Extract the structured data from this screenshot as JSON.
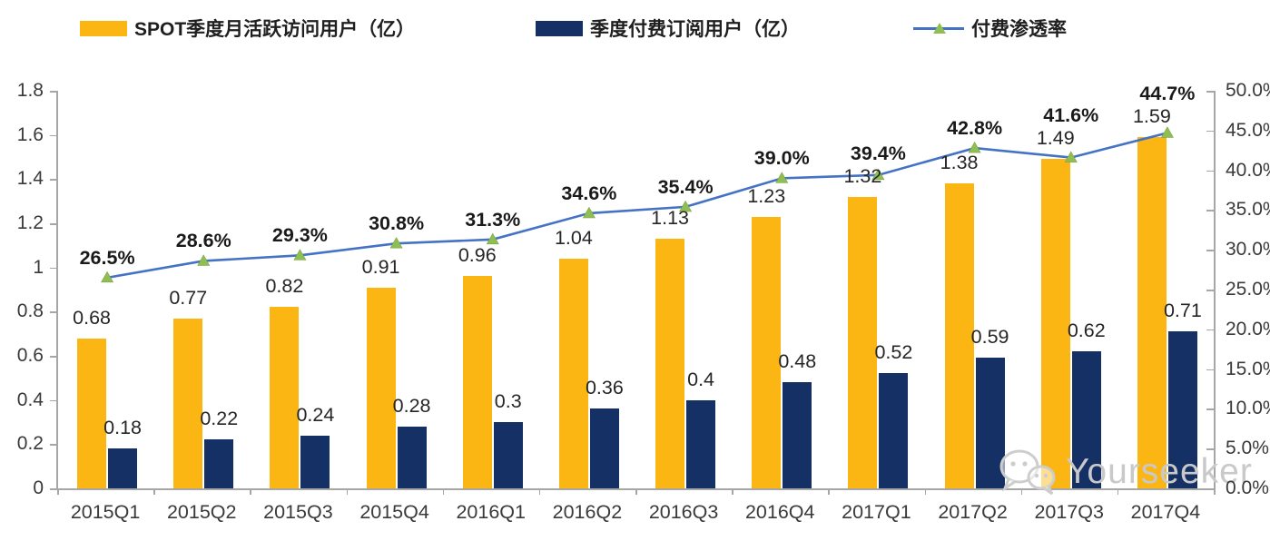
{
  "legend": {
    "items": [
      {
        "label": "SPOT季度月活跃访问用户（亿）",
        "swatch": "bar",
        "color": "#fbb614"
      },
      {
        "label": "季度付费订阅用户（亿）",
        "swatch": "bar",
        "color": "#143064"
      },
      {
        "label": "付费渗透率",
        "swatch": "line",
        "color": "#4472c4",
        "marker_color": "#8fbe53"
      }
    ]
  },
  "chart_data": {
    "type": "bar",
    "subtype": "clustered bars with secondary-axis line",
    "categories": [
      "2015Q1",
      "2015Q2",
      "2015Q3",
      "2015Q4",
      "2016Q1",
      "2016Q2",
      "2016Q3",
      "2016Q4",
      "2017Q1",
      "2017Q2",
      "2017Q3",
      "2017Q4"
    ],
    "series": [
      {
        "name": "SPOT季度月活跃访问用户（亿）",
        "chart": "bar",
        "axis": "left",
        "color": "#fbb614",
        "values": [
          0.68,
          0.77,
          0.82,
          0.91,
          0.96,
          1.04,
          1.13,
          1.23,
          1.32,
          1.38,
          1.49,
          1.59
        ],
        "labels": [
          "0.68",
          "0.77",
          "0.82",
          "0.91",
          "0.96",
          "1.04",
          "1.13",
          "1.23",
          "1.32",
          "1.38",
          "1.49",
          "1.59"
        ]
      },
      {
        "name": "季度付费订阅用户（亿）",
        "chart": "bar",
        "axis": "left",
        "color": "#143064",
        "values": [
          0.18,
          0.22,
          0.24,
          0.28,
          0.3,
          0.36,
          0.4,
          0.48,
          0.52,
          0.59,
          0.62,
          0.71
        ],
        "labels": [
          "0.18",
          "0.22",
          "0.24",
          "0.28",
          "0.3",
          "0.36",
          "0.4",
          "0.48",
          "0.52",
          "0.59",
          "0.62",
          "0.71"
        ]
      },
      {
        "name": "付费渗透率",
        "chart": "line",
        "axis": "right",
        "color": "#4472c4",
        "marker": "triangle",
        "marker_color": "#8fbe53",
        "values": [
          26.5,
          28.6,
          29.3,
          30.8,
          31.3,
          34.6,
          35.4,
          39.0,
          39.4,
          42.8,
          41.6,
          44.7
        ],
        "labels": [
          "26.5%",
          "28.6%",
          "29.3%",
          "30.8%",
          "31.3%",
          "34.6%",
          "35.4%",
          "39.0%",
          "39.4%",
          "42.8%",
          "41.6%",
          "44.7%"
        ]
      }
    ],
    "left_axis": {
      "min": 0,
      "max": 1.8,
      "step": 0.2,
      "ticks": [
        "0",
        "0.2",
        "0.4",
        "0.6",
        "0.8",
        "1",
        "1.2",
        "1.4",
        "1.6",
        "1.8"
      ]
    },
    "right_axis": {
      "min": 0,
      "max": 50,
      "step": 5,
      "ticks": [
        "0.0%",
        "5.0%",
        "10.0%",
        "15.0%",
        "20.0%",
        "25.0%",
        "30.0%",
        "35.0%",
        "40.0%",
        "45.0%",
        "50.0%"
      ]
    },
    "grid": false,
    "legend_position": "top"
  },
  "watermark": {
    "text": "Yourseeker",
    "icon": "wechat-icon"
  },
  "colors": {
    "bar_mau": "#fbb614",
    "bar_subs": "#143064",
    "line": "#4472c4",
    "marker": "#8fbe53",
    "axis": "#a6a6a6",
    "label_text": "#262626",
    "tick_text": "#3a3a3a",
    "watermark": "#c9c9c9"
  }
}
